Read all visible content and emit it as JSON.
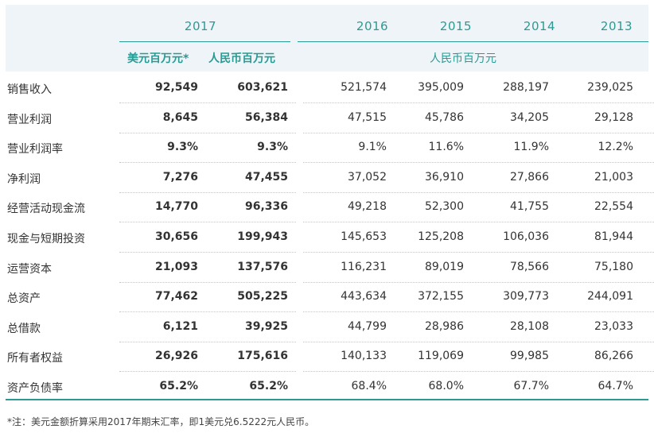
{
  "header": {
    "years": [
      "2017",
      "2016",
      "2015",
      "2014",
      "2013"
    ],
    "unit_usd": "美元百万元*",
    "unit_rmb_2017": "人民币百万元",
    "unit_rmb_other": "人民币百万元"
  },
  "rows": [
    {
      "label": "销售收入",
      "usd": "92,549",
      "rmb2017": "603,621",
      "y2016": "521,574",
      "y2015": "395,009",
      "y2014": "288,197",
      "y2013": "239,025"
    },
    {
      "label": "营业利润",
      "usd": "8,645",
      "rmb2017": "56,384",
      "y2016": "47,515",
      "y2015": "45,786",
      "y2014": "34,205",
      "y2013": "29,128"
    },
    {
      "label": "营业利润率",
      "usd": "9.3%",
      "rmb2017": "9.3%",
      "y2016": "9.1%",
      "y2015": "11.6%",
      "y2014": "11.9%",
      "y2013": "12.2%"
    },
    {
      "label": "净利润",
      "usd": "7,276",
      "rmb2017": "47,455",
      "y2016": "37,052",
      "y2015": "36,910",
      "y2014": "27,866",
      "y2013": "21,003"
    },
    {
      "label": "经营活动现金流",
      "usd": "14,770",
      "rmb2017": "96,336",
      "y2016": "49,218",
      "y2015": "52,300",
      "y2014": "41,755",
      "y2013": "22,554"
    },
    {
      "label": "现金与短期投资",
      "usd": "30,656",
      "rmb2017": "199,943",
      "y2016": "145,653",
      "y2015": "125,208",
      "y2014": "106,036",
      "y2013": "81,944"
    },
    {
      "label": "运营资本",
      "usd": "21,093",
      "rmb2017": "137,576",
      "y2016": "116,231",
      "y2015": "89,019",
      "y2014": "78,566",
      "y2013": "75,180"
    },
    {
      "label": "总资产",
      "usd": "77,462",
      "rmb2017": "505,225",
      "y2016": "443,634",
      "y2015": "372,155",
      "y2014": "309,773",
      "y2013": "244,091"
    },
    {
      "label": "总借款",
      "usd": "6,121",
      "rmb2017": "39,925",
      "y2016": "44,799",
      "y2015": "28,986",
      "y2014": "28,108",
      "y2013": "23,033"
    },
    {
      "label": "所有者权益",
      "usd": "26,926",
      "rmb2017": "175,616",
      "y2016": "140,133",
      "y2015": "119,069",
      "y2014": "99,985",
      "y2013": "86,266"
    },
    {
      "label": "资产负债率",
      "usd": "65.2%",
      "rmb2017": "65.2%",
      "y2016": "68.4%",
      "y2015": "68.0%",
      "y2014": "67.7%",
      "y2013": "64.7%"
    }
  ],
  "footnote": "*注：美元金额折算采用2017年期末汇率，即1美元兑6.5222元人民币。",
  "colors": {
    "accent": "#2b9a93",
    "header_bg": "#eef4f7"
  }
}
